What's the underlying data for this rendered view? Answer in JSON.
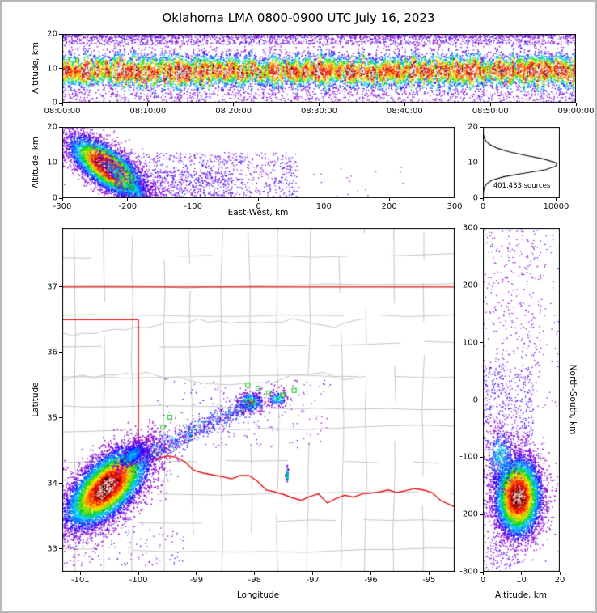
{
  "title": "Oklahoma LMA 0800-0900 UTC July 16, 2023",
  "labels": {
    "altitude_km": "Altitude, km",
    "east_west": "East-West, km",
    "longitude": "Longitude",
    "latitude": "Latitude",
    "north_south": "North-South, km",
    "sources": "401,433 sources"
  },
  "chart_data": {
    "type": "scatter",
    "description": "XLMA-style lightning mapping array source density display: time-height, east-west height, altitude histogram, plan-view map, north-south height panels",
    "total_sources": 401433,
    "colormap": [
      {
        "t": 0.105,
        "c": "#8a00d4"
      },
      {
        "t": 0.19,
        "c": "#2a00ff"
      },
      {
        "t": 0.28,
        "c": "#0070ff"
      },
      {
        "t": 0.37,
        "c": "#00c8ff"
      },
      {
        "t": 0.46,
        "c": "#00d22a"
      },
      {
        "t": 0.55,
        "c": "#7ae000"
      },
      {
        "t": 0.63,
        "c": "#ffe800"
      },
      {
        "t": 0.72,
        "c": "#ff9500"
      },
      {
        "t": 0.85,
        "c": "#ff1500"
      },
      {
        "t": 0.92,
        "c": "#c00000"
      },
      {
        "t": 0.965,
        "c": "#140000"
      },
      {
        "t": 9,
        "c": "#e0e0e0"
      }
    ],
    "border_color": "#e81010",
    "county_color": "#c4c4c4",
    "station_color": "#2ecc2e",
    "panels": [
      {
        "id": "time_height",
        "render": "band",
        "seed": 11,
        "xlim": [
          0,
          3600
        ],
        "ylim": [
          0,
          20
        ],
        "xticks": {
          "values": [
            0,
            600,
            1200,
            1800,
            2400,
            3000,
            3600
          ],
          "labels": [
            "08:00:00",
            "08:10:00",
            "08:20:00",
            "08:30:00",
            "08:40:00",
            "08:50:00",
            "09:00:00"
          ]
        },
        "yticks": {
          "values": [
            0,
            10,
            20
          ],
          "labels": [
            "0",
            "10",
            "20"
          ]
        },
        "band": {
          "center": 9.3,
          "sigma": 3.3,
          "columns": 230,
          "points": 15000
        },
        "sparse": [
          {
            "x0": 0,
            "x1": 3600,
            "y0": 17,
            "y1": 20,
            "n": 1500,
            "u": 0.08
          },
          {
            "x0": 0,
            "x1": 3600,
            "y0": 19,
            "y1": 20,
            "n": 700,
            "u": 0.07
          },
          {
            "x0": 0,
            "x1": 3600,
            "y0": 0,
            "y1": 3,
            "n": 600,
            "u": 0.07
          }
        ]
      },
      {
        "id": "ew_height",
        "render": "scatter",
        "seed": 22,
        "xlim": [
          -300,
          300
        ],
        "ylim": [
          0,
          20
        ],
        "xticks": {
          "values": [
            -300,
            -200,
            -100,
            0,
            100,
            200,
            300
          ],
          "labels": [
            "-300",
            "-200",
            "-100",
            "0",
            "100",
            "200",
            "300"
          ]
        },
        "yticks": {
          "values": [
            0,
            10,
            20
          ],
          "labels": [
            "0",
            "10",
            "20"
          ]
        },
        "clusters": [
          {
            "cx": -232,
            "cy": 8.8,
            "sx": 30,
            "sy": 3.1,
            "rot": -6,
            "n": 6500,
            "boost": 1.0
          },
          {
            "cx": -200,
            "cy": 4.2,
            "sx": 28,
            "sy": 2.0,
            "rot": -10,
            "n": 700,
            "boost": 0.4
          }
        ],
        "sparse": [
          {
            "x0": -210,
            "x1": 60,
            "y0": 0,
            "y1": 13,
            "n": 850,
            "u": 0.09
          },
          {
            "x0": -160,
            "x1": -40,
            "y0": 0,
            "y1": 8,
            "n": 350,
            "u": 0.1
          },
          {
            "x0": 60,
            "x1": 230,
            "y0": 0,
            "y1": 9,
            "n": 22,
            "u": 0.05
          }
        ]
      },
      {
        "id": "histogram",
        "render": "hist",
        "seed": 3,
        "xlim": [
          0,
          10500
        ],
        "ylim": [
          0,
          20
        ],
        "xticks": {
          "values": [
            0,
            10000
          ],
          "labels": [
            "0",
            "10000"
          ]
        },
        "yticks": {
          "values": [
            0,
            10,
            20
          ],
          "labels": [
            "0",
            "10",
            "20"
          ]
        },
        "profile": [
          [
            0,
            0
          ],
          [
            1,
            40
          ],
          [
            2,
            90
          ],
          [
            3,
            200
          ],
          [
            4,
            500
          ],
          [
            5,
            1200
          ],
          [
            6,
            2800
          ],
          [
            7,
            5600
          ],
          [
            8,
            8600
          ],
          [
            9,
            9950
          ],
          [
            9.6,
            10120
          ],
          [
            10,
            9900
          ],
          [
            11,
            8300
          ],
          [
            12,
            5900
          ],
          [
            13,
            3600
          ],
          [
            14,
            2000
          ],
          [
            15,
            1000
          ],
          [
            16,
            430
          ],
          [
            17,
            170
          ],
          [
            18,
            60
          ],
          [
            19,
            18
          ],
          [
            20,
            4
          ]
        ]
      },
      {
        "id": "plan",
        "render": "map",
        "seed": 33,
        "xlim": [
          -101.31,
          -94.56
        ],
        "ylim": [
          32.65,
          37.9
        ],
        "xticks": {
          "values": [
            -101,
            -100,
            -99,
            -98,
            -97,
            -96,
            -95
          ],
          "labels": [
            "-101",
            "-100",
            "-99",
            "-98",
            "-97",
            "-96",
            "-95"
          ]
        },
        "yticks": {
          "values": [
            33,
            34,
            35,
            36,
            37
          ],
          "labels": [
            "33",
            "34",
            "35",
            "36",
            "37"
          ]
        },
        "counties": {
          "lon_step": 0.5,
          "lat_step": 0.45,
          "seed": 99
        },
        "border": [
          [
            [
              -101.31,
              37
            ],
            [
              -94.56,
              37
            ]
          ],
          [
            [
              -101.31,
              36.5
            ],
            [
              -100,
              36.5
            ]
          ],
          [
            [
              -100,
              36.5
            ],
            [
              -100,
              34.56
            ]
          ],
          [
            [
              -100,
              34.56
            ],
            [
              -99.85,
              34.46
            ],
            [
              -99.68,
              34.38
            ],
            [
              -99.5,
              34.42
            ],
            [
              -99.35,
              34.4
            ],
            [
              -99.2,
              34.33
            ],
            [
              -99.05,
              34.2
            ],
            [
              -98.9,
              34.16
            ],
            [
              -98.72,
              34.13
            ],
            [
              -98.55,
              34.1
            ],
            [
              -98.4,
              34.07
            ],
            [
              -98.25,
              34.12
            ],
            [
              -98.1,
              34.12
            ],
            [
              -97.95,
              34.03
            ],
            [
              -97.8,
              33.9
            ],
            [
              -97.65,
              33.87
            ],
            [
              -97.5,
              33.83
            ],
            [
              -97.35,
              33.78
            ],
            [
              -97.2,
              33.74
            ],
            [
              -97.05,
              33.8
            ],
            [
              -96.9,
              33.84
            ],
            [
              -96.75,
              33.7
            ],
            [
              -96.6,
              33.77
            ],
            [
              -96.45,
              33.82
            ],
            [
              -96.3,
              33.79
            ],
            [
              -96.15,
              33.84
            ],
            [
              -96.0,
              33.85
            ],
            [
              -95.85,
              33.87
            ],
            [
              -95.7,
              33.9
            ],
            [
              -95.55,
              33.86
            ],
            [
              -95.4,
              33.89
            ],
            [
              -95.25,
              33.92
            ],
            [
              -95.1,
              33.9
            ],
            [
              -94.95,
              33.86
            ],
            [
              -94.8,
              33.74
            ],
            [
              -94.56,
              33.64
            ]
          ]
        ],
        "clusters": [
          {
            "cx": -100.55,
            "cy": 33.95,
            "sx": 0.44,
            "sy": 0.21,
            "rot": 38,
            "n": 8500,
            "boost": 1.0
          },
          {
            "cx": -100.1,
            "cy": 34.45,
            "sx": 0.18,
            "sy": 0.07,
            "rot": 35,
            "n": 500,
            "boost": 0.3
          },
          {
            "cx": -98.08,
            "cy": 35.25,
            "sx": 0.11,
            "sy": 0.08,
            "rot": 0,
            "n": 280,
            "boost": 0.5
          },
          {
            "cx": -97.62,
            "cy": 35.3,
            "sx": 0.09,
            "sy": 0.06,
            "rot": 0,
            "n": 140,
            "boost": 0.38
          },
          {
            "cx": -97.45,
            "cy": 34.14,
            "sx": 0.012,
            "sy": 0.055,
            "rot": 0,
            "n": 55,
            "boost": 0.5
          }
        ],
        "streak": {
          "x0": -99.95,
          "y0": 34.4,
          "x1": -97.95,
          "y1": 35.28,
          "jitter": 0.075,
          "n": 850,
          "u": 0.14
        },
        "sparse": [
          {
            "x0": -99.7,
            "x1": -96.7,
            "y0": 34.55,
            "y1": 35.6,
            "n": 200,
            "u": 0.07
          },
          {
            "x0": -101.3,
            "x1": -99.2,
            "y0": 32.75,
            "y1": 33.4,
            "n": 150,
            "u": 0.08
          }
        ],
        "stations": [
          [
            -98.12,
            35.5
          ],
          [
            -97.94,
            35.45
          ],
          [
            -97.76,
            35.38
          ],
          [
            -97.52,
            35.35
          ],
          [
            -97.32,
            35.42
          ],
          [
            -99.46,
            35.01
          ],
          [
            -99.58,
            34.86
          ]
        ]
      },
      {
        "id": "ns_height",
        "render": "scatter",
        "seed": 44,
        "xlim": [
          0,
          20
        ],
        "ylim": [
          -300,
          300
        ],
        "xticks": {
          "values": [
            0,
            10,
            20
          ],
          "labels": [
            "0",
            "10",
            "20"
          ]
        },
        "yticks": {
          "values": [
            -300,
            -200,
            -100,
            0,
            100,
            200,
            300
          ],
          "labels": [
            "-300",
            "-200",
            "-100",
            "0",
            "100",
            "200",
            "300"
          ]
        },
        "clusters": [
          {
            "cx": 9,
            "cy": -168,
            "sx": 3.1,
            "sy": 36,
            "rot": 0,
            "n": 7000,
            "boost": 1.0
          },
          {
            "cx": 4.5,
            "cy": -100,
            "sx": 2.2,
            "sy": 30,
            "rot": 0,
            "n": 500,
            "boost": 0.35
          }
        ],
        "sparse": [
          {
            "x0": 0,
            "x1": 13,
            "y0": -80,
            "y1": 60,
            "n": 420,
            "u": 0.1
          },
          {
            "x0": 0,
            "x1": 15,
            "y0": 60,
            "y1": 300,
            "n": 300,
            "u": 0.06
          },
          {
            "x0": 0,
            "x1": 9,
            "y0": -300,
            "y1": -235,
            "n": 130,
            "u": 0.07
          },
          {
            "x0": 13,
            "x1": 20,
            "y0": -60,
            "y1": 300,
            "n": 60,
            "u": 0.05
          }
        ]
      }
    ]
  }
}
